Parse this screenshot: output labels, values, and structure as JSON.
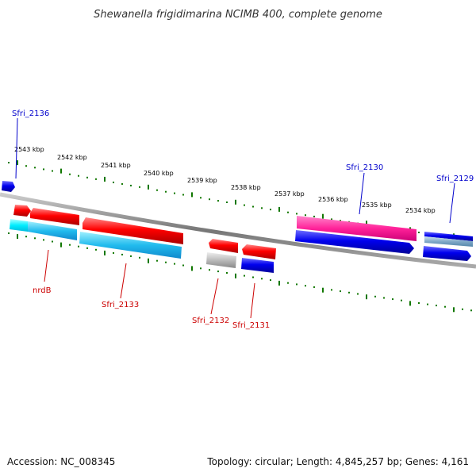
{
  "header": {
    "title": "Shewanella frigidimarina NCIMB 400, complete genome"
  },
  "footer": {
    "accession": "Accession: NC_008345",
    "topology": "Topology: circular; Length: 4,845,257 bp; Genes: 4,161"
  },
  "colors": {
    "forward_gene": "#ff0000",
    "reverse_gene": "#0000ee",
    "forward_cds": "#22bbee",
    "pink_gene": "#ff2299",
    "gray_feature": "#bbbbbb",
    "tick": "#117700",
    "backbone": "#888888",
    "label_forward": "#cc0000",
    "label_reverse": "#0000cc"
  },
  "kbp_labels": [
    "2543 kbp",
    "2542 kbp",
    "2541 kbp",
    "2540 kbp",
    "2539 kbp",
    "2538 kbp",
    "2537 kbp",
    "2536 kbp",
    "2535 kbp",
    "2534 kbp"
  ],
  "gene_labels": {
    "sfri_2136": "Sfri_2136",
    "sfri_2130": "Sfri_2130",
    "sfri_2129": "Sfri_2129",
    "nrdb": "nrdB",
    "sfri_2133": "Sfri_2133",
    "sfri_2132": "Sfri_2132",
    "sfri_2131": "Sfri_2131"
  }
}
